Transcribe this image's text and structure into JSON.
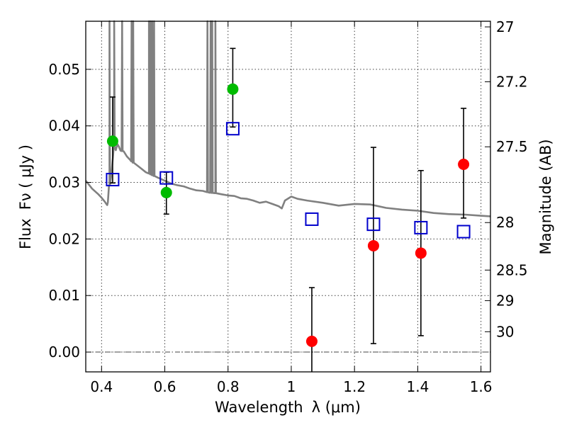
{
  "chart_data": {
    "type": "scatter",
    "title": "",
    "xlabel": "Wavelength",
    "xlabel_math": "λ (μm)",
    "ylabel": "Flux",
    "ylabel_math": "Fν ( μJy )",
    "y2label": "Magnitude (AB)",
    "xlim": [
      0.35,
      1.63
    ],
    "ylim": [
      -0.0035,
      0.0585
    ],
    "grid": true,
    "x_ticks": [
      0.4,
      0.6,
      0.8,
      1,
      1.2,
      1.4,
      1.6
    ],
    "x_tick_labels": [
      "0.4",
      "0.6",
      "0.8",
      "1",
      "1.2",
      "1.4",
      "1.6"
    ],
    "y_ticks": [
      0.0,
      0.01,
      0.02,
      0.03,
      0.04,
      0.05
    ],
    "y_tick_labels": [
      "0.00",
      "0.01",
      "0.02",
      "0.03",
      "0.04",
      "0.05"
    ],
    "y2_ticks": [
      {
        "label": "27",
        "flux": 0.0575
      },
      {
        "label": "27.2",
        "flux": 0.0478
      },
      {
        "label": "27.5",
        "flux": 0.0363
      },
      {
        "label": "28",
        "flux": 0.0229
      },
      {
        "label": "28.5",
        "flux": 0.0145
      },
      {
        "label": "29",
        "flux": 0.0091
      },
      {
        "label": "30",
        "flux": 0.0036
      }
    ],
    "colors": {
      "model": "#808080",
      "observed_optical": "#00bb00",
      "observed_nir": "#ff0000",
      "model_photometry": "#0000cc",
      "errorbar": "#000000"
    },
    "series": [
      {
        "type": "line",
        "color": "#808080",
        "x": [
          0.35,
          0.37,
          0.39,
          0.4,
          0.41,
          0.415,
          0.418,
          0.42,
          0.425,
          0.43,
          0.436,
          0.44,
          0.445,
          0.45,
          0.455,
          0.46,
          0.47,
          0.48,
          0.49,
          0.5,
          0.52,
          0.54,
          0.55,
          0.56,
          0.58,
          0.6,
          0.62,
          0.64,
          0.66,
          0.68,
          0.7,
          0.72,
          0.74,
          0.76,
          0.78,
          0.8,
          0.82,
          0.84,
          0.86,
          0.88,
          0.9,
          0.92,
          0.94,
          0.96,
          0.97,
          0.98,
          1.0,
          1.02,
          1.05,
          1.1,
          1.15,
          1.2,
          1.25,
          1.3,
          1.35,
          1.4,
          1.45,
          1.5,
          1.55,
          1.6,
          1.63
        ],
        "y": [
          0.0303,
          0.0289,
          0.0279,
          0.0273,
          0.0266,
          0.0262,
          0.026,
          0.0265,
          0.0295,
          0.031,
          0.0345,
          0.0362,
          0.0357,
          0.0368,
          0.0363,
          0.0356,
          0.0355,
          0.0346,
          0.034,
          0.0335,
          0.0327,
          0.0318,
          0.0316,
          0.0313,
          0.0308,
          0.0303,
          0.0298,
          0.0295,
          0.0293,
          0.0289,
          0.0286,
          0.0285,
          0.0282,
          0.0281,
          0.0279,
          0.0277,
          0.0276,
          0.0272,
          0.0271,
          0.0268,
          0.0264,
          0.0266,
          0.0262,
          0.0258,
          0.0254,
          0.0268,
          0.0275,
          0.0271,
          0.0268,
          0.0264,
          0.0259,
          0.0262,
          0.0261,
          0.0255,
          0.0252,
          0.025,
          0.0246,
          0.0244,
          0.0243,
          0.0241,
          0.024
        ],
        "emission_lines": [
          {
            "x": 0.425,
            "peak": 0.0585
          },
          {
            "x": 0.44,
            "peak": 0.0585
          },
          {
            "x": 0.465,
            "peak": 0.0585
          },
          {
            "x": 0.495,
            "peak": 0.0585
          },
          {
            "x": 0.5,
            "peak": 0.0585
          },
          {
            "x": 0.55,
            "peak": 0.0585
          },
          {
            "x": 0.555,
            "peak": 0.0585
          },
          {
            "x": 0.56,
            "peak": 0.0585
          },
          {
            "x": 0.566,
            "peak": 0.0585
          },
          {
            "x": 0.735,
            "peak": 0.0585
          },
          {
            "x": 0.745,
            "peak": 0.0585
          },
          {
            "x": 0.75,
            "peak": 0.0585
          },
          {
            "x": 0.76,
            "peak": 0.0585
          }
        ]
      },
      {
        "type": "errorbar",
        "color": "#00bb00",
        "points": [
          {
            "x": 0.435,
            "y": 0.0373,
            "lo": 0.0299,
            "hi": 0.0451
          },
          {
            "x": 0.605,
            "y": 0.0282,
            "lo": 0.0244,
            "hi": 0.0318
          },
          {
            "x": 0.815,
            "y": 0.0465,
            "lo": 0.0398,
            "hi": 0.0537
          }
        ]
      },
      {
        "type": "errorbar",
        "color": "#ff0000",
        "points": [
          {
            "x": 1.065,
            "y": 0.0019,
            "lo": -0.0035,
            "hi": 0.0114
          },
          {
            "x": 1.26,
            "y": 0.0188,
            "lo": 0.0015,
            "hi": 0.0362
          },
          {
            "x": 1.41,
            "y": 0.0175,
            "lo": 0.0029,
            "hi": 0.0321
          },
          {
            "x": 1.545,
            "y": 0.0332,
            "lo": 0.0237,
            "hi": 0.0431
          }
        ]
      },
      {
        "type": "scatter",
        "marker": "open-square",
        "color": "#0000cc",
        "x": [
          0.435,
          0.605,
          0.815,
          1.065,
          1.26,
          1.41,
          1.545
        ],
        "y": [
          0.0305,
          0.0308,
          0.0395,
          0.0235,
          0.0226,
          0.022,
          0.0213
        ]
      }
    ]
  }
}
